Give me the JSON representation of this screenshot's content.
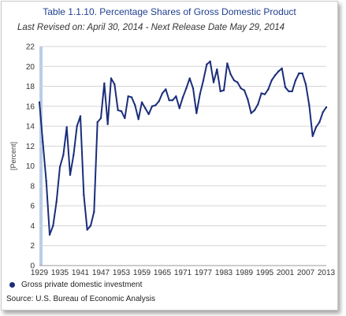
{
  "chart_data": {
    "type": "line",
    "title": "Table 1.1.10. Percentage Shares of Gross Domestic Product",
    "subtitle": "Last Revised on: April 30, 2014 - Next Release Date May 29, 2014",
    "ylabel": "[Percent]",
    "xlabel": "",
    "ylim": [
      0,
      22
    ],
    "yticks": [
      0,
      2,
      4,
      6,
      8,
      10,
      12,
      14,
      16,
      18,
      20,
      22
    ],
    "xlim": [
      1929,
      2013
    ],
    "xticks": [
      "1929",
      "1935",
      "1941",
      "1947",
      "1953",
      "1959",
      "1965",
      "1971",
      "1977",
      "1983",
      "1989",
      "1995",
      "2001",
      "2007",
      "2013"
    ],
    "grid": true,
    "series": [
      {
        "name": "Gross private domestic investment",
        "color": "#1a2d7a",
        "x": [
          1929,
          1930,
          1931,
          1932,
          1933,
          1934,
          1935,
          1936,
          1937,
          1938,
          1939,
          1940,
          1941,
          1942,
          1943,
          1944,
          1945,
          1946,
          1947,
          1948,
          1949,
          1950,
          1951,
          1952,
          1953,
          1954,
          1955,
          1956,
          1957,
          1958,
          1959,
          1960,
          1961,
          1962,
          1963,
          1964,
          1965,
          1966,
          1967,
          1968,
          1969,
          1970,
          1971,
          1972,
          1973,
          1974,
          1975,
          1976,
          1977,
          1978,
          1979,
          1980,
          1981,
          1982,
          1983,
          1984,
          1985,
          1986,
          1987,
          1988,
          1989,
          1990,
          1991,
          1992,
          1993,
          1994,
          1995,
          1996,
          1997,
          1998,
          1999,
          2000,
          2001,
          2002,
          2003,
          2004,
          2005,
          2006,
          2007,
          2008,
          2009,
          2010,
          2011,
          2012,
          2013
        ],
        "values": [
          16.4,
          12.4,
          8.5,
          3.1,
          4.0,
          6.4,
          9.9,
          11.1,
          13.9,
          9.1,
          11.1,
          14.0,
          15.0,
          7.1,
          3.6,
          4.0,
          5.4,
          14.4,
          14.8,
          18.3,
          14.2,
          18.8,
          18.2,
          15.6,
          15.5,
          14.8,
          17.0,
          16.9,
          16.1,
          14.7,
          16.4,
          15.8,
          15.2,
          16.0,
          16.1,
          16.5,
          17.3,
          17.7,
          16.6,
          16.6,
          17.0,
          15.8,
          16.9,
          17.8,
          18.8,
          17.8,
          15.3,
          17.2,
          18.6,
          20.2,
          20.5,
          18.4,
          19.7,
          17.5,
          17.6,
          20.3,
          19.2,
          18.6,
          18.4,
          17.8,
          17.6,
          16.7,
          15.3,
          15.6,
          16.2,
          17.3,
          17.2,
          17.7,
          18.6,
          19.1,
          19.5,
          19.8,
          17.9,
          17.5,
          17.5,
          18.6,
          19.3,
          19.3,
          18.2,
          16.1,
          13.0,
          13.9,
          14.4,
          15.4,
          15.9
        ]
      }
    ],
    "legend_position": "bottom-left",
    "source": "Source: U.S. Bureau of Economic Analysis"
  }
}
